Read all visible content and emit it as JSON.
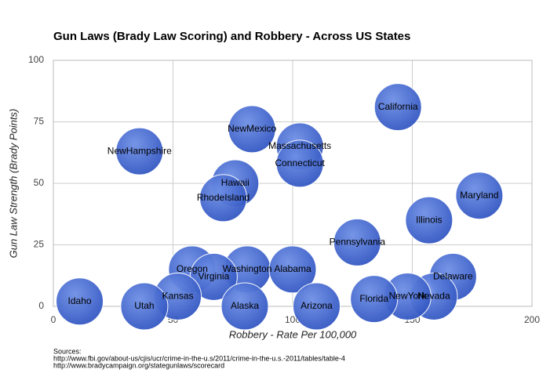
{
  "chart_data": {
    "type": "scatter",
    "title": "Gun Laws (Brady Law Scoring) and Robbery - Across US States",
    "x_label": "Robbery - Rate Per 100,000",
    "y_label": "Gun Law Strength (Brady Points)",
    "color": "#3f68d0",
    "grid": true,
    "xlim": [
      0,
      200
    ],
    "xticks": [
      0,
      50,
      100,
      150,
      200
    ],
    "ylim": [
      0,
      100
    ],
    "yticks": [
      0,
      25,
      50,
      75,
      100
    ],
    "points": [
      {
        "name": "California",
        "x": 144,
        "y": 81
      },
      {
        "name": "NewMexico",
        "x": 83,
        "y": 72
      },
      {
        "name": "NewHampshire",
        "x": 36,
        "y": 63
      },
      {
        "name": "Massachusetts",
        "x": 103,
        "y": 65
      },
      {
        "name": "Connecticut",
        "x": 103,
        "y": 58
      },
      {
        "name": "Hawaii",
        "x": 76,
        "y": 50
      },
      {
        "name": "RhodeIsland",
        "x": 71,
        "y": 44
      },
      {
        "name": "Maryland",
        "x": 178,
        "y": 45
      },
      {
        "name": "Illinois",
        "x": 157,
        "y": 35
      },
      {
        "name": "Pennsylvania",
        "x": 127,
        "y": 26
      },
      {
        "name": "Oregon",
        "x": 58,
        "y": 15
      },
      {
        "name": "Washington",
        "x": 81,
        "y": 15
      },
      {
        "name": "Alabama",
        "x": 100,
        "y": 15
      },
      {
        "name": "Virginia",
        "x": 67,
        "y": 12
      },
      {
        "name": "Delaware",
        "x": 167,
        "y": 12
      },
      {
        "name": "Nevada",
        "x": 159,
        "y": 4
      },
      {
        "name": "NewYork",
        "x": 148,
        "y": 4
      },
      {
        "name": "Florida",
        "x": 134,
        "y": 3
      },
      {
        "name": "Kansas",
        "x": 52,
        "y": 4
      },
      {
        "name": "Idaho",
        "x": 11,
        "y": 2
      },
      {
        "name": "Utah",
        "x": 38,
        "y": 0
      },
      {
        "name": "Alaska",
        "x": 80,
        "y": 0
      },
      {
        "name": "Arizona",
        "x": 110,
        "y": 0
      }
    ]
  },
  "sources": {
    "heading": "Sources:",
    "lines": [
      "http://www.fbi.gov/about-us/cjis/ucr/crime-in-the-u.s/2011/crime-in-the-u.s.-2011/tables/table-4",
      "http://www.bradycampaign.org/stategunlaws/scorecard"
    ]
  }
}
